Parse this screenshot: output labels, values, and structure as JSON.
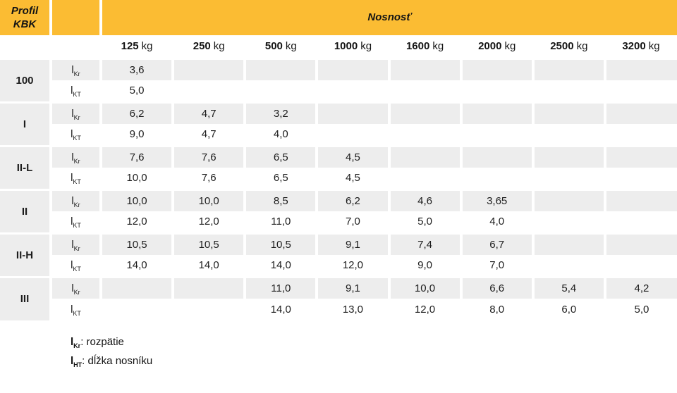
{
  "header": {
    "profile_label": "Profil KBK",
    "capacity_label": "Nosnosť"
  },
  "columns": [
    {
      "value": "125",
      "unit": "kg"
    },
    {
      "value": "250",
      "unit": "kg"
    },
    {
      "value": "500",
      "unit": "kg"
    },
    {
      "value": "1000",
      "unit": "kg"
    },
    {
      "value": "1600",
      "unit": "kg"
    },
    {
      "value": "2000",
      "unit": "kg"
    },
    {
      "value": "2500",
      "unit": "kg"
    },
    {
      "value": "3200",
      "unit": "kg"
    }
  ],
  "row_label": {
    "base": "l",
    "kr_sub": "Kr",
    "kt_sub": "KT"
  },
  "groups": [
    {
      "profile": "100",
      "kr": [
        "3,6",
        "",
        "",
        "",
        "",
        "",
        "",
        ""
      ],
      "kt": [
        "5,0",
        "",
        "",
        "",
        "",
        "",
        "",
        ""
      ]
    },
    {
      "profile": "I",
      "kr": [
        "6,2",
        "4,7",
        "3,2",
        "",
        "",
        "",
        "",
        ""
      ],
      "kt": [
        "9,0",
        "4,7",
        "4,0",
        "",
        "",
        "",
        "",
        ""
      ]
    },
    {
      "profile": "II-L",
      "kr": [
        "7,6",
        "7,6",
        "6,5",
        "4,5",
        "",
        "",
        "",
        ""
      ],
      "kt": [
        "10,0",
        "7,6",
        "6,5",
        "4,5",
        "",
        "",
        "",
        ""
      ]
    },
    {
      "profile": "II",
      "kr": [
        "10,0",
        "10,0",
        "8,5",
        "6,2",
        "4,6",
        "3,65",
        "",
        ""
      ],
      "kt": [
        "12,0",
        "12,0",
        "11,0",
        "7,0",
        "5,0",
        "4,0",
        "",
        ""
      ]
    },
    {
      "profile": "II-H",
      "kr": [
        "10,5",
        "10,5",
        "10,5",
        "9,1",
        "7,4",
        "6,7",
        "",
        ""
      ],
      "kt": [
        "14,0",
        "14,0",
        "14,0",
        "12,0",
        "9,0",
        "7,0",
        "",
        ""
      ]
    },
    {
      "profile": "III",
      "kr": [
        "",
        "",
        "11,0",
        "9,1",
        "10,0",
        "6,6",
        "5,4",
        "4,2"
      ],
      "kt": [
        "",
        "",
        "14,0",
        "13,0",
        "12,0",
        "8,0",
        "6,0",
        "5,0"
      ]
    }
  ],
  "legend": [
    {
      "symbol": "l",
      "sub": "Kr",
      "text": ": rozpätie"
    },
    {
      "symbol": "l",
      "sub": "HT",
      "text": ": dĺžka nosníku"
    }
  ],
  "colors": {
    "accent": "#FBBC33",
    "row_gray": "#EDEDED"
  }
}
